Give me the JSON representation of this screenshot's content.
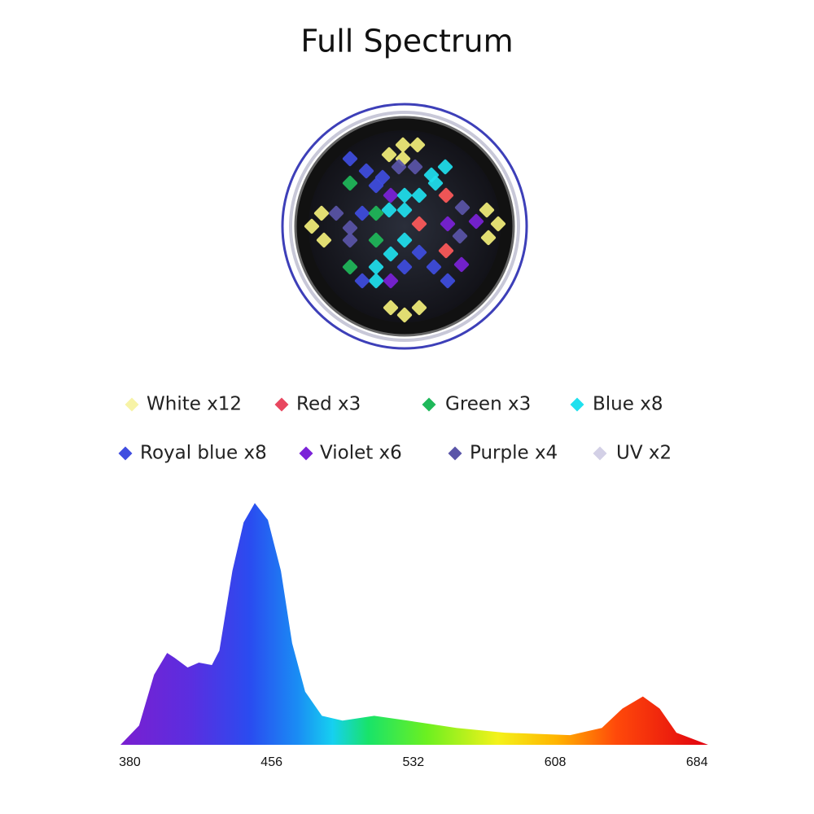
{
  "title": "Full Spectrum",
  "legend": [
    {
      "label": "White x12",
      "color": "#f7f3a6"
    },
    {
      "label": "Red x3",
      "color": "#e8475f"
    },
    {
      "label": "Green x3",
      "color": "#1fb85a"
    },
    {
      "label": "Blue x8",
      "color": "#1fe0ee"
    },
    {
      "label": "Royal blue x8",
      "color": "#3f4de0"
    },
    {
      "label": "Violet x6",
      "color": "#7b22d8"
    },
    {
      "label": "Purple x4",
      "color": "#5a55a8"
    },
    {
      "label": "UV x2",
      "color": "#d3d0e6"
    }
  ],
  "chart_data": {
    "type": "area",
    "x": [
      375,
      385,
      393,
      400,
      404,
      411,
      417,
      424,
      428,
      435,
      441,
      447,
      454,
      461,
      467,
      474,
      483,
      494,
      511,
      529,
      555,
      581,
      616,
      633,
      644,
      655,
      664,
      673,
      690
    ],
    "values": [
      0,
      8,
      29,
      38,
      36,
      32,
      34,
      33,
      39,
      72,
      92,
      100,
      93,
      72,
      42,
      22,
      12,
      10,
      12,
      10,
      7,
      5,
      4,
      7,
      15,
      20,
      15,
      5,
      0
    ],
    "xlim": [
      375,
      690
    ],
    "ylim": [
      0,
      100
    ],
    "xticks": [
      380,
      456,
      532,
      608,
      684
    ]
  }
}
